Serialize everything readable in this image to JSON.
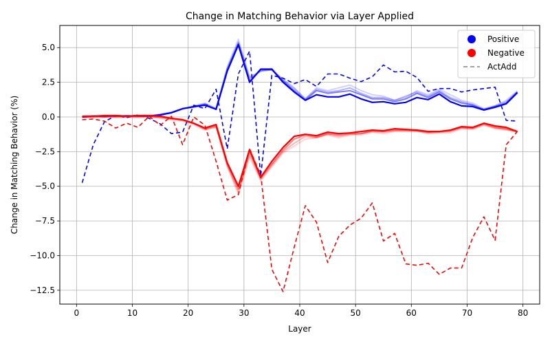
{
  "chart_data": {
    "type": "line",
    "title": "Change in Matching Behavior via Layer Applied",
    "xlabel": "Layer",
    "ylabel": "Change in Matching Behavior (%)",
    "xlim": [
      -3,
      83
    ],
    "ylim": [
      -13.5,
      6.6
    ],
    "xticks": [
      0,
      10,
      20,
      30,
      40,
      50,
      60,
      70,
      80
    ],
    "yticks": [
      -12.5,
      -10.0,
      -7.5,
      -5.0,
      -2.5,
      0.0,
      2.5,
      5.0
    ],
    "grid": true,
    "legend_position": "top-right",
    "legend": [
      {
        "label": "Positive",
        "marker": "circle",
        "color": "#0000ff"
      },
      {
        "label": "Negative",
        "marker": "circle",
        "color": "#ff0000"
      },
      {
        "label": "ActAdd",
        "marker": "dashed-line",
        "color": "#808080"
      }
    ],
    "x": [
      1,
      3,
      5,
      7,
      9,
      11,
      13,
      15,
      17,
      19,
      21,
      23,
      25,
      27,
      29,
      31,
      33,
      35,
      37,
      39,
      41,
      43,
      45,
      47,
      49,
      51,
      53,
      55,
      57,
      59,
      61,
      63,
      65,
      67,
      69,
      71,
      73,
      75,
      77,
      79
    ],
    "series": [
      {
        "name": "Positive (faint variant 1)",
        "group": "Positive",
        "style": "solid",
        "color": "#0000ff",
        "opacity": 0.18,
        "values": [
          0.0,
          0.05,
          0.0,
          0.05,
          0.1,
          0.05,
          0.1,
          0.15,
          0.3,
          0.55,
          0.8,
          1.0,
          0.6,
          3.6,
          5.6,
          2.9,
          3.3,
          3.5,
          2.6,
          2.0,
          1.3,
          2.1,
          1.9,
          2.1,
          2.3,
          1.9,
          1.6,
          1.5,
          1.2,
          1.4,
          1.9,
          1.6,
          2.0,
          1.6,
          1.2,
          1.0,
          0.6,
          0.8,
          1.2,
          1.9
        ]
      },
      {
        "name": "Positive (faint variant 2)",
        "group": "Positive",
        "style": "solid",
        "color": "#0000ff",
        "opacity": 0.3,
        "values": [
          0.05,
          0.1,
          0.05,
          0.1,
          0.05,
          0.1,
          0.1,
          0.2,
          0.35,
          0.6,
          0.75,
          0.95,
          0.6,
          3.5,
          5.4,
          2.8,
          3.3,
          3.4,
          2.7,
          2.1,
          1.3,
          2.0,
          1.8,
          1.9,
          2.1,
          1.7,
          1.4,
          1.4,
          1.2,
          1.5,
          1.8,
          1.5,
          1.9,
          1.4,
          1.1,
          0.9,
          0.5,
          0.8,
          1.1,
          1.8
        ]
      },
      {
        "name": "Positive (variant 3)",
        "group": "Positive",
        "style": "solid",
        "color": "#0000ff",
        "opacity": 0.5,
        "values": [
          0.0,
          0.05,
          0.1,
          0.05,
          0.1,
          0.05,
          0.05,
          0.15,
          0.3,
          0.6,
          0.7,
          0.9,
          0.55,
          3.4,
          5.3,
          2.6,
          3.4,
          3.4,
          2.6,
          1.9,
          1.2,
          1.9,
          1.7,
          1.8,
          1.9,
          1.6,
          1.3,
          1.3,
          1.1,
          1.3,
          1.7,
          1.4,
          1.8,
          1.3,
          1.0,
          0.85,
          0.55,
          0.75,
          1.0,
          1.8
        ]
      },
      {
        "name": "Positive",
        "group": "Positive",
        "style": "solid",
        "color": "#0000ff",
        "opacity": 1.0,
        "values": [
          0.0,
          0.05,
          0.05,
          0.1,
          0.05,
          0.1,
          0.05,
          0.15,
          0.3,
          0.6,
          0.75,
          0.85,
          0.55,
          3.3,
          5.2,
          2.5,
          3.45,
          3.45,
          2.5,
          1.8,
          1.2,
          1.6,
          1.45,
          1.45,
          1.65,
          1.3,
          1.05,
          1.1,
          0.95,
          1.05,
          1.4,
          1.25,
          1.65,
          1.1,
          0.8,
          0.75,
          0.5,
          0.7,
          0.95,
          1.75
        ]
      },
      {
        "name": "ActAdd Positive",
        "group": "ActAdd",
        "style": "dashed",
        "color": "#0000ff",
        "opacity": 1.0,
        "values": [
          -4.75,
          -2.0,
          -0.35,
          0.1,
          -0.05,
          0.15,
          -0.1,
          -0.5,
          -1.2,
          -1.1,
          0.85,
          0.6,
          2.0,
          -2.3,
          3.1,
          4.75,
          -4.25,
          3.0,
          2.8,
          2.4,
          2.7,
          2.2,
          3.1,
          3.1,
          2.8,
          2.55,
          2.9,
          3.75,
          3.25,
          3.3,
          2.85,
          1.85,
          2.05,
          2.05,
          1.8,
          1.95,
          2.05,
          2.15,
          -0.25,
          -0.3
        ]
      },
      {
        "name": "Negative (faint variant 1)",
        "group": "Negative",
        "style": "solid",
        "color": "#ff0000",
        "opacity": 0.18,
        "values": [
          -0.05,
          -0.05,
          0.0,
          -0.05,
          0.0,
          -0.05,
          0.0,
          -0.1,
          -0.2,
          -0.3,
          -0.55,
          -0.95,
          -0.75,
          -3.6,
          -5.6,
          -2.9,
          -4.6,
          -3.6,
          -2.6,
          -2.1,
          -1.6,
          -1.5,
          -1.3,
          -1.5,
          -1.3,
          -1.3,
          -1.1,
          -1.2,
          -1.05,
          -1.05,
          -1.05,
          -1.2,
          -1.15,
          -1.15,
          -0.85,
          -0.9,
          -0.6,
          -0.85,
          -0.95,
          -1.05
        ]
      },
      {
        "name": "Negative (faint variant 2)",
        "group": "Negative",
        "style": "solid",
        "color": "#ff0000",
        "opacity": 0.3,
        "values": [
          0.0,
          0.0,
          0.05,
          0.0,
          0.05,
          0.0,
          0.05,
          -0.05,
          -0.15,
          -0.25,
          -0.5,
          -0.9,
          -0.7,
          -3.5,
          -5.4,
          -2.7,
          -4.5,
          -3.5,
          -2.5,
          -1.9,
          -1.4,
          -1.5,
          -1.25,
          -1.4,
          -1.25,
          -1.2,
          -1.05,
          -1.1,
          -1.0,
          -1.0,
          -1.0,
          -1.15,
          -1.1,
          -1.05,
          -0.8,
          -0.85,
          -0.55,
          -0.8,
          -0.9,
          -1.05
        ]
      },
      {
        "name": "Negative (variant 3)",
        "group": "Negative",
        "style": "solid",
        "color": "#ff0000",
        "opacity": 0.5,
        "values": [
          0.05,
          0.05,
          0.0,
          0.05,
          0.0,
          0.05,
          0.05,
          0.0,
          -0.1,
          -0.2,
          -0.45,
          -0.85,
          -0.65,
          -3.4,
          -5.2,
          -2.5,
          -4.4,
          -3.4,
          -2.4,
          -1.6,
          -1.3,
          -1.45,
          -1.2,
          -1.3,
          -1.2,
          -1.2,
          -1.0,
          -1.05,
          -0.95,
          -0.95,
          -1.0,
          -1.1,
          -1.05,
          -1.0,
          -0.75,
          -0.8,
          -0.5,
          -0.75,
          -0.85,
          -1.1
        ]
      },
      {
        "name": "Negative",
        "group": "Negative",
        "style": "solid",
        "color": "#ff0000",
        "opacity": 1.0,
        "values": [
          0.05,
          0.05,
          0.1,
          0.1,
          0.05,
          0.1,
          0.1,
          0.05,
          -0.1,
          -0.2,
          -0.45,
          -0.8,
          -0.55,
          -3.3,
          -5.0,
          -2.35,
          -4.35,
          -3.2,
          -2.2,
          -1.4,
          -1.25,
          -1.35,
          -1.1,
          -1.2,
          -1.15,
          -1.05,
          -0.95,
          -1.0,
          -0.85,
          -0.9,
          -0.95,
          -1.05,
          -1.05,
          -0.95,
          -0.7,
          -0.75,
          -0.45,
          -0.65,
          -0.75,
          -1.05
        ]
      },
      {
        "name": "ActAdd Negative",
        "group": "ActAdd",
        "style": "dashed",
        "color": "#ff0000",
        "opacity": 1.0,
        "values": [
          -0.2,
          -0.15,
          -0.3,
          -0.8,
          -0.45,
          -0.75,
          0.05,
          -0.6,
          0.05,
          -2.0,
          0.0,
          -0.6,
          -3.2,
          -6.0,
          -5.6,
          -2.3,
          -4.2,
          -11.0,
          -12.6,
          -9.4,
          -6.4,
          -7.6,
          -10.5,
          -8.6,
          -7.8,
          -7.3,
          -6.2,
          -8.95,
          -8.4,
          -10.6,
          -10.7,
          -10.55,
          -11.35,
          -10.9,
          -10.9,
          -8.7,
          -7.2,
          -8.9,
          -2.0,
          -1.05
        ]
      }
    ]
  }
}
